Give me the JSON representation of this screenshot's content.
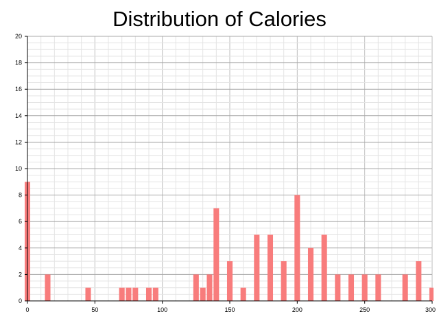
{
  "chart_data": {
    "type": "bar",
    "title": "Distribution of Calories",
    "xlabel": "",
    "ylabel": "",
    "xlim": [
      0,
      300
    ],
    "ylim": [
      0,
      20
    ],
    "x_ticks": [
      0,
      50,
      100,
      150,
      200,
      250,
      300
    ],
    "y_ticks": [
      0,
      2,
      4,
      6,
      8,
      10,
      12,
      14,
      16,
      18,
      20
    ],
    "grid": true,
    "bar_color": "#f87c7c",
    "bin_width": 5,
    "bins": [
      {
        "x": 0,
        "count": 9
      },
      {
        "x": 15,
        "count": 2
      },
      {
        "x": 45,
        "count": 1
      },
      {
        "x": 70,
        "count": 1
      },
      {
        "x": 75,
        "count": 1
      },
      {
        "x": 80,
        "count": 1
      },
      {
        "x": 90,
        "count": 1
      },
      {
        "x": 95,
        "count": 1
      },
      {
        "x": 125,
        "count": 2
      },
      {
        "x": 130,
        "count": 1
      },
      {
        "x": 135,
        "count": 2
      },
      {
        "x": 140,
        "count": 7
      },
      {
        "x": 150,
        "count": 3
      },
      {
        "x": 160,
        "count": 1
      },
      {
        "x": 170,
        "count": 5
      },
      {
        "x": 180,
        "count": 5
      },
      {
        "x": 190,
        "count": 3
      },
      {
        "x": 200,
        "count": 8
      },
      {
        "x": 210,
        "count": 4
      },
      {
        "x": 220,
        "count": 5
      },
      {
        "x": 230,
        "count": 2
      },
      {
        "x": 240,
        "count": 2
      },
      {
        "x": 250,
        "count": 2
      },
      {
        "x": 260,
        "count": 2
      },
      {
        "x": 280,
        "count": 2
      },
      {
        "x": 290,
        "count": 3
      },
      {
        "x": 300,
        "count": 1
      }
    ]
  }
}
